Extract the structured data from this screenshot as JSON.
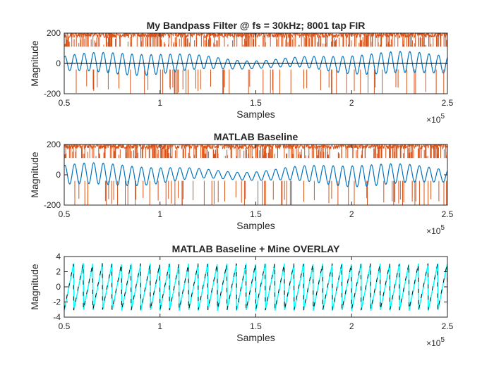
{
  "chart_data": [
    {
      "type": "line",
      "title": "My Bandpass Filter @ fs = 30kHz; 8001 tap FIR",
      "xlabel": "Samples",
      "ylabel": "Magnitude",
      "x_exponent_label": "×10",
      "x_exponent_power": "5",
      "xlim": [
        0.5,
        2.5
      ],
      "ylim": [
        -200,
        200
      ],
      "xticks": [
        "0.5",
        "1",
        "1.5",
        "2",
        "2.5"
      ],
      "yticks": [
        "-200",
        "0",
        "200"
      ],
      "grid": false,
      "series": [
        {
          "color": "#D95319",
          "style": "spiky-noise",
          "values": "approx. spikes reaching ±200 (clipped)"
        },
        {
          "color": "#0072BD",
          "style": "oscillation",
          "amplitude_range": [
            25,
            70
          ],
          "cycles": 40
        },
        {
          "color": "#000000",
          "style": "near-zero",
          "values": [
            0,
            0
          ]
        }
      ]
    },
    {
      "type": "line",
      "title": "MATLAB Baseline",
      "xlabel": "Samples",
      "ylabel": "Magnitude",
      "x_exponent_label": "×10",
      "x_exponent_power": "5",
      "xlim": [
        0.5,
        2.5
      ],
      "ylim": [
        -200,
        200
      ],
      "xticks": [
        "0.5",
        "1",
        "1.5",
        "2",
        "2.5"
      ],
      "yticks": [
        "-200",
        "0",
        "200"
      ],
      "grid": false,
      "series": [
        {
          "color": "#D95319",
          "style": "spiky-noise",
          "values": "approx. spikes reaching ±200 (clipped)"
        },
        {
          "color": "#0072BD",
          "style": "oscillation",
          "amplitude_range": [
            25,
            70
          ],
          "cycles": 40
        }
      ]
    },
    {
      "type": "line",
      "title": "MATLAB Baseline + Mine OVERLAY",
      "xlabel": "Samples",
      "ylabel": "Magnitude",
      "x_exponent_label": "×10",
      "x_exponent_power": "5",
      "xlim": [
        0.5,
        2.5
      ],
      "ylim": [
        -4,
        4
      ],
      "xticks": [
        "0.5",
        "1",
        "1.5",
        "2",
        "2.5"
      ],
      "yticks": [
        "-4",
        "-2",
        "0",
        "2",
        "4"
      ],
      "grid": false,
      "series": [
        {
          "color": "#00FFFF",
          "style": "sawtooth",
          "amplitude": 3.14,
          "cycles": 40
        },
        {
          "color": "#000000",
          "style": "sawtooth",
          "amplitude": 3.14,
          "cycles": 40
        }
      ]
    }
  ]
}
